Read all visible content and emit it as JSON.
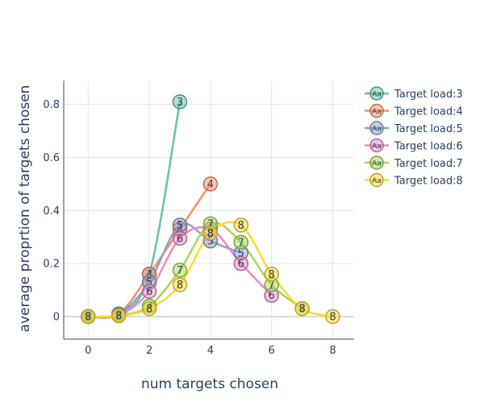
{
  "chart_data": {
    "type": "line",
    "title": "",
    "xlabel": "num targets chosen",
    "ylabel": "average proprtion of targets chosen",
    "xlim": [
      -0.8,
      8.7
    ],
    "ylim": [
      -0.085,
      0.89
    ],
    "x_ticks": [
      0,
      2,
      4,
      6,
      8
    ],
    "x_tick_labels": [
      "0",
      "2",
      "4",
      "6",
      "8"
    ],
    "y_ticks": [
      0,
      0.2,
      0.4,
      0.6,
      0.8
    ],
    "y_tick_labels": [
      "0",
      "0.2",
      "0.4",
      "0.6",
      "0.8"
    ],
    "grid": true,
    "legend_position": "top-right",
    "legend_marker_text": "Aa",
    "series": [
      {
        "name": "Target load:3",
        "color": "#66c2a5",
        "marker_text": "3",
        "x": [
          0,
          1,
          2,
          3
        ],
        "y": [
          0,
          0.01,
          0.16,
          0.81
        ]
      },
      {
        "name": "Target load:4",
        "color": "#fc8d62",
        "marker_text": "4",
        "x": [
          0,
          1,
          2,
          3,
          4
        ],
        "y": [
          0,
          0.01,
          0.16,
          0.33,
          0.5
        ]
      },
      {
        "name": "Target load:5",
        "color": "#8da0cb",
        "marker_text": "5",
        "x": [
          0,
          1,
          2,
          3,
          4,
          5
        ],
        "y": [
          0,
          0.01,
          0.13,
          0.345,
          0.285,
          0.24
        ]
      },
      {
        "name": "Target load:6",
        "color": "#e78ac3",
        "marker_text": "6",
        "x": [
          0,
          1,
          2,
          3,
          4,
          5,
          6
        ],
        "y": [
          0,
          0.005,
          0.095,
          0.295,
          0.33,
          0.2,
          0.08
        ]
      },
      {
        "name": "Target load:7",
        "color": "#a6d854",
        "marker_text": "7",
        "x": [
          0,
          1,
          2,
          3,
          4,
          5,
          6,
          7
        ],
        "y": [
          0,
          0.005,
          0.04,
          0.175,
          0.35,
          0.28,
          0.12,
          0.03
        ]
      },
      {
        "name": "Target load:8",
        "color": "#ffd92f",
        "marker_text": "8",
        "x": [
          0,
          1,
          2,
          3,
          4,
          5,
          6,
          7,
          8
        ],
        "y": [
          0,
          0.003,
          0.03,
          0.12,
          0.315,
          0.345,
          0.16,
          0.03,
          0
        ]
      }
    ]
  }
}
